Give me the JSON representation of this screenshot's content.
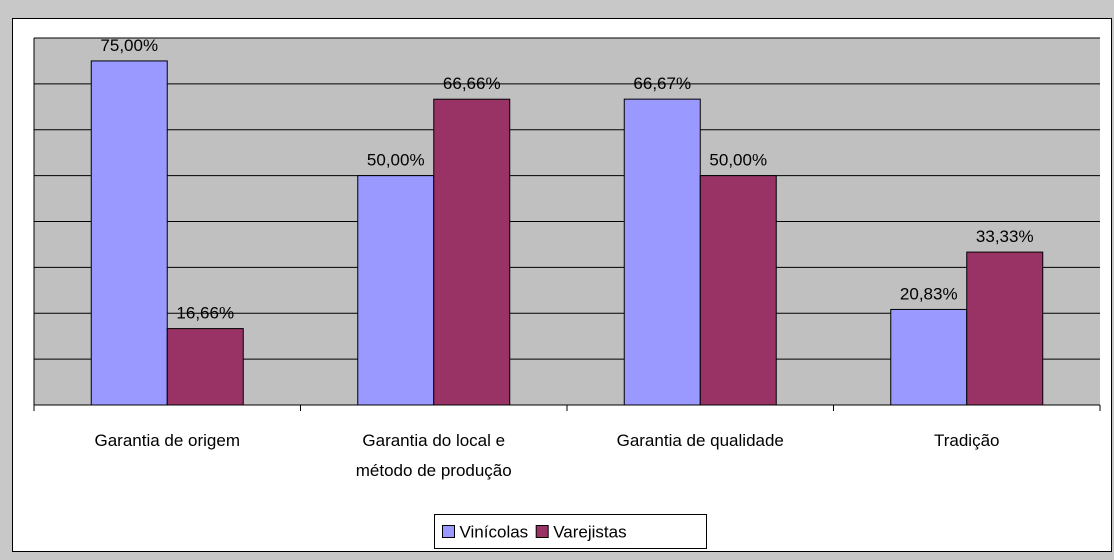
{
  "chart_data": {
    "type": "bar",
    "categories": [
      "Garantia de origem",
      "Garantia do local e\nmétodo de produção",
      "Garantia de qualidade",
      "Tradição"
    ],
    "series": [
      {
        "name": "Vinícolas",
        "color": "#9999ff",
        "values": [
          75,
          50,
          66.67,
          20.83
        ],
        "value_labels": [
          "75,00%",
          "50,00%",
          "66,67%",
          "20,83%"
        ]
      },
      {
        "name": "Varejistas",
        "color": "#993366",
        "values": [
          16.66,
          66.66,
          50,
          33.33
        ],
        "value_labels": [
          "16,66%",
          "66,66%",
          "50,00%",
          "33,33%"
        ]
      }
    ],
    "ylim": [
      0,
      80
    ],
    "yticks": [
      0,
      10,
      20,
      30,
      40,
      50,
      60,
      70,
      80
    ],
    "grid": true,
    "legend": "bottom"
  }
}
